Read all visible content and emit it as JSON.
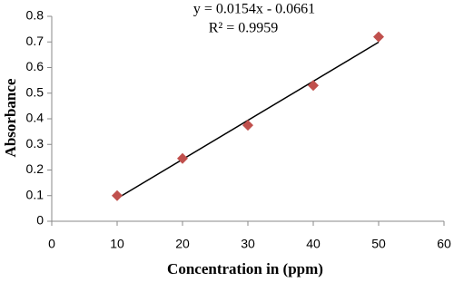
{
  "chart_data": {
    "type": "scatter",
    "x_label": "Concentration in (ppm)",
    "y_label": "Absorbance",
    "annotations": [
      "y = 0.0154x - 0.0661",
      "R² = 0.9959"
    ],
    "series": [
      {
        "x": [
          10,
          20,
          30,
          40,
          50
        ],
        "values": [
          0.1,
          0.245,
          0.375,
          0.53,
          0.72
        ],
        "color": "#c0504d"
      }
    ],
    "trendline": true,
    "trendline_color": "#000000",
    "xlim": [
      0,
      60
    ],
    "xticks": [
      0,
      10,
      20,
      30,
      40,
      50,
      60
    ],
    "ylim": [
      0,
      0.8
    ],
    "yticks": [
      0,
      0.1,
      0.2,
      0.3,
      0.4,
      0.5,
      0.6,
      0.7,
      0.8
    ]
  }
}
